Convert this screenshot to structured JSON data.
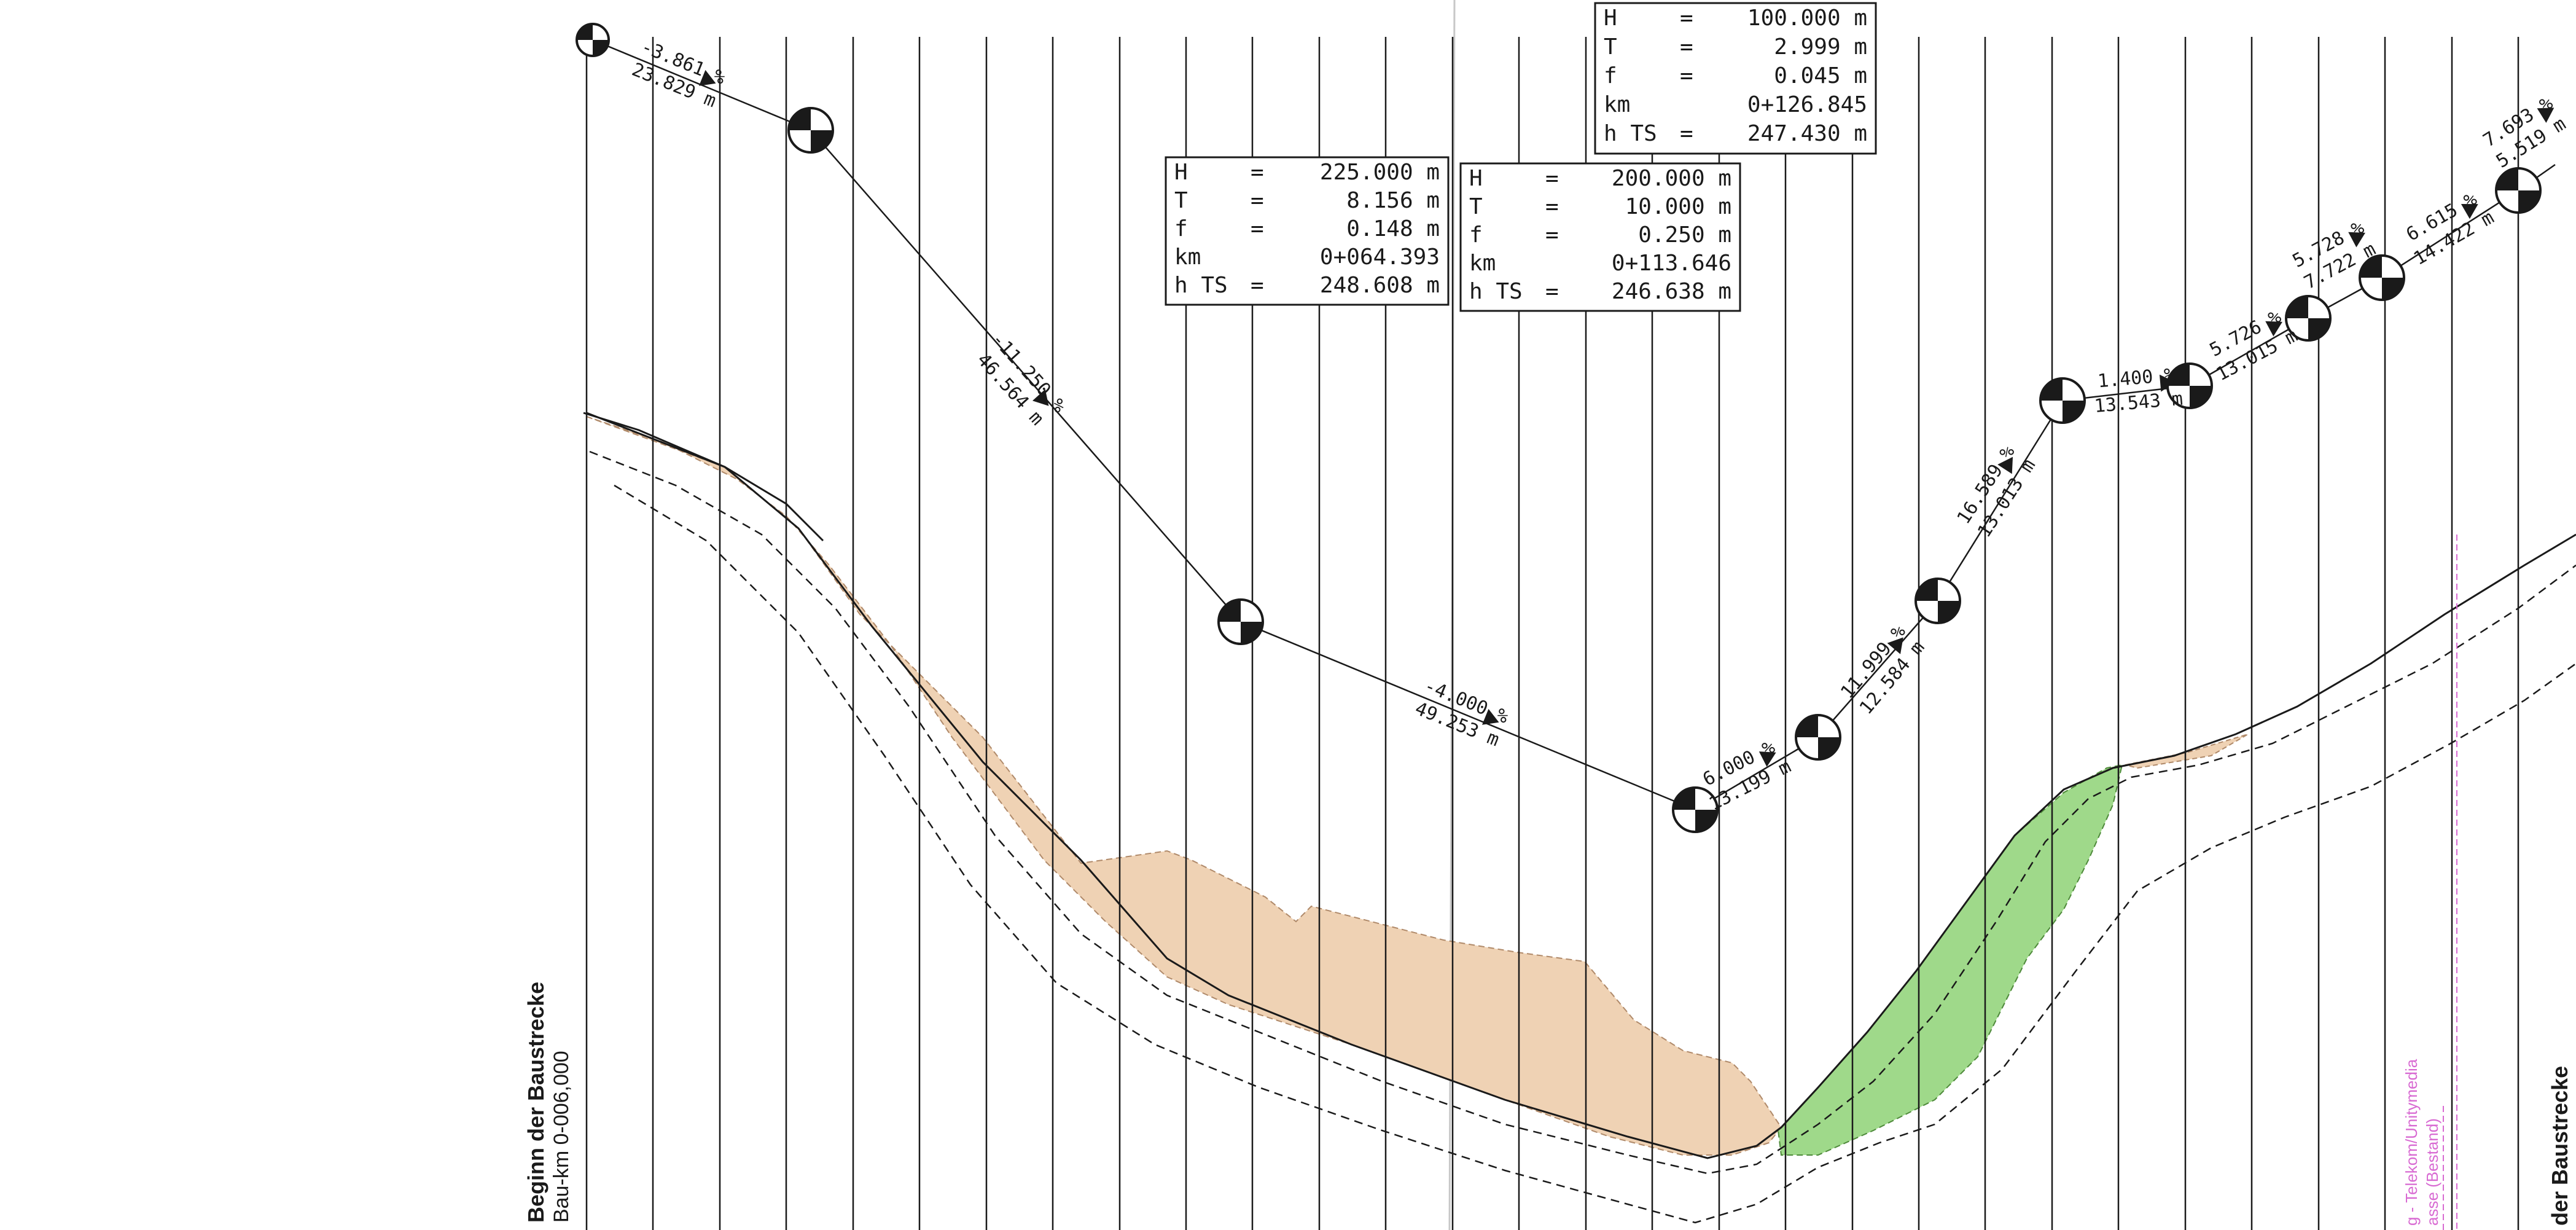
{
  "curve_boxes": [
    {
      "rows": [
        {
          "label": "H",
          "sep": "=",
          "value": "225.000 m"
        },
        {
          "label": "T",
          "sep": "=",
          "value": "8.156 m"
        },
        {
          "label": "f",
          "sep": "=",
          "value": "0.148 m"
        },
        {
          "label": "km",
          "sep": "",
          "value": "0+064.393"
        },
        {
          "label": "h TS",
          "sep": "=",
          "value": "248.608 m"
        }
      ]
    },
    {
      "rows": [
        {
          "label": "H",
          "sep": "=",
          "value": "200.000 m"
        },
        {
          "label": "T",
          "sep": "=",
          "value": "10.000 m"
        },
        {
          "label": "f",
          "sep": "=",
          "value": "0.250 m"
        },
        {
          "label": "km",
          "sep": "",
          "value": "0+113.646"
        },
        {
          "label": "h TS",
          "sep": "=",
          "value": "246.638 m"
        }
      ]
    },
    {
      "rows": [
        {
          "label": "H",
          "sep": "=",
          "value": "100.000 m"
        },
        {
          "label": "T",
          "sep": "=",
          "value": "2.999 m"
        },
        {
          "label": "f",
          "sep": "=",
          "value": "0.045 m"
        },
        {
          "label": "km",
          "sep": "",
          "value": "0+126.845"
        },
        {
          "label": "h TS",
          "sep": "=",
          "value": "247.430 m"
        }
      ]
    }
  ],
  "gradient_labels": [
    {
      "grade": "-3.861 %",
      "length": "23.829 m"
    },
    {
      "grade": "-11.250 %",
      "length": "46.564 m"
    },
    {
      "grade": "-4.000 %",
      "length": "49.253 m"
    },
    {
      "grade": "6.000 %",
      "length": "13.199 m"
    },
    {
      "grade": "11.999 %",
      "length": "12.584 m"
    },
    {
      "grade": "16.589 %",
      "length": "13.013 m"
    },
    {
      "grade": "1.400 %",
      "length": "13.543 m"
    },
    {
      "grade": "5.726 %",
      "length": "13.015 m"
    },
    {
      "grade": "5.728 %",
      "length": "7.722 m"
    },
    {
      "grade": "6.615 %",
      "length": "14.422 m"
    },
    {
      "grade": "7.693 %",
      "length": "5.519 m"
    }
  ],
  "side_labels": {
    "start_title": "Beginn der Baustrecke",
    "start_km": "Bau-km 0-006,000",
    "end_title": "der Baustrecke",
    "utility_line1": "g - Telekom/Unitymedia",
    "utility_line2": "asse (Bestand)"
  },
  "colors": {
    "cut_fill": "#efd2b4",
    "fill_fill": "#9fd98a",
    "line": "#1a1a1a",
    "utility": "#d86ad2"
  }
}
